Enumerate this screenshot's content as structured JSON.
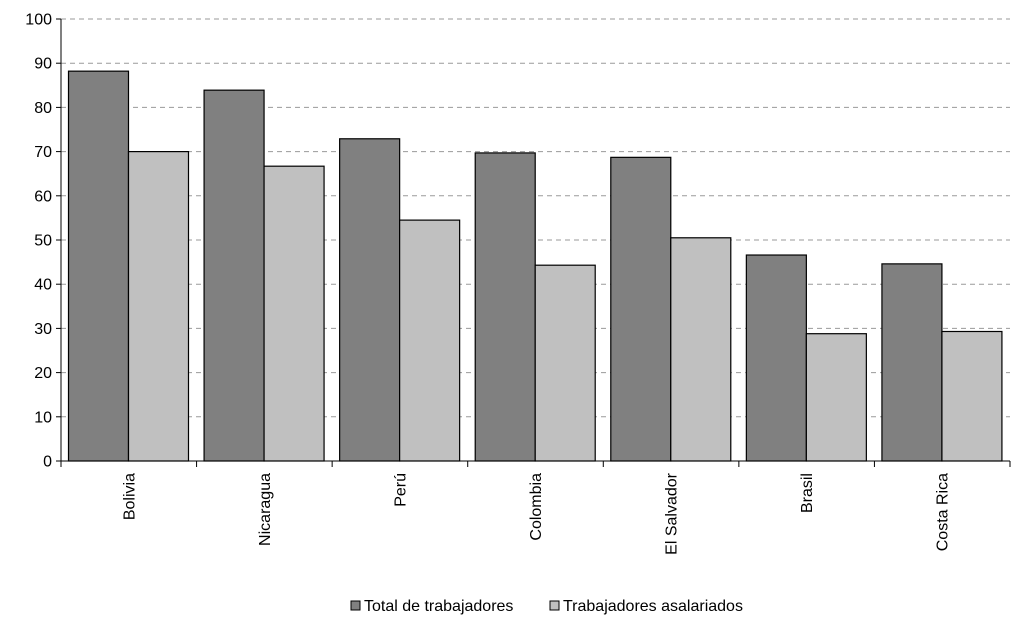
{
  "chart_data": {
    "type": "bar",
    "title": "",
    "xlabel": "",
    "ylabel": "",
    "categories": [
      "Bolivia",
      "Nicaragua",
      "Perú",
      "Colombia",
      "El Salvador",
      "Brasil",
      "Costa Rica"
    ],
    "series": [
      {
        "name": "Total de trabajadores",
        "color": "#808080",
        "values": [
          88.2,
          83.9,
          72.9,
          69.7,
          68.7,
          46.6,
          44.6
        ]
      },
      {
        "name": "Trabajadores asalariados",
        "color": "#c0c0c0",
        "values": [
          70.0,
          66.7,
          54.5,
          44.3,
          50.5,
          28.8,
          29.3
        ]
      }
    ],
    "ylim": [
      0,
      100
    ],
    "yticks": [
      "0",
      "10",
      "20",
      "30",
      "40",
      "50",
      "60",
      "70",
      "80",
      "90",
      "100"
    ],
    "grid": true,
    "legend_position": "bottom-center"
  }
}
